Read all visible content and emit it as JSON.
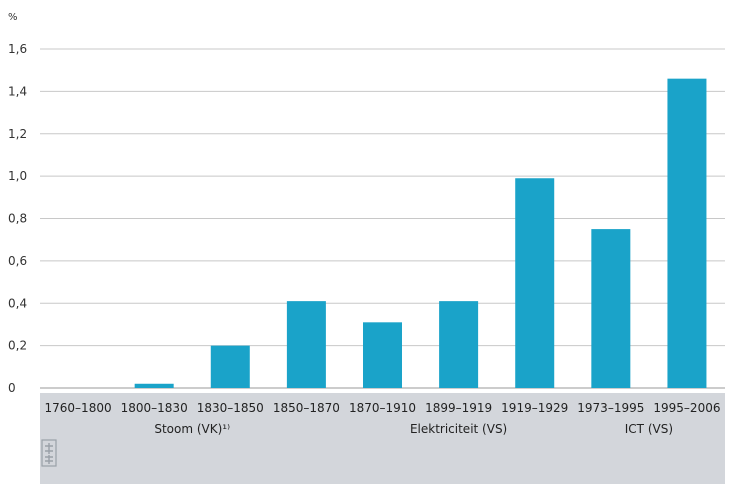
{
  "chart_data": {
    "type": "bar",
    "unit_label": "%",
    "categories": [
      "1760–1800",
      "1800–1830",
      "1830–1850",
      "1850–1870",
      "1870–1910",
      "1899–1919",
      "1919–1929",
      "1973–1995",
      "1995–2006"
    ],
    "values": [
      0.0,
      0.02,
      0.2,
      0.41,
      0.31,
      0.41,
      0.99,
      0.75,
      1.46
    ],
    "ylim": [
      0,
      1.6
    ],
    "yticks": [
      "0",
      "0,2",
      "0,4",
      "0,6",
      "0,8",
      "1,0",
      "1,2",
      "1,4",
      "1,6"
    ],
    "groups": [
      {
        "label": "Stoom (VK)¹⁾",
        "from": 0,
        "to": 3
      },
      {
        "label": "Elektriciteit (VS)",
        "from": 4,
        "to": 6
      },
      {
        "label": "ICT (VS)",
        "from": 7,
        "to": 8
      }
    ],
    "bar_color": "#1aa3c9",
    "footer_color": "#d3d6db",
    "grid": true,
    "legend": "none"
  }
}
